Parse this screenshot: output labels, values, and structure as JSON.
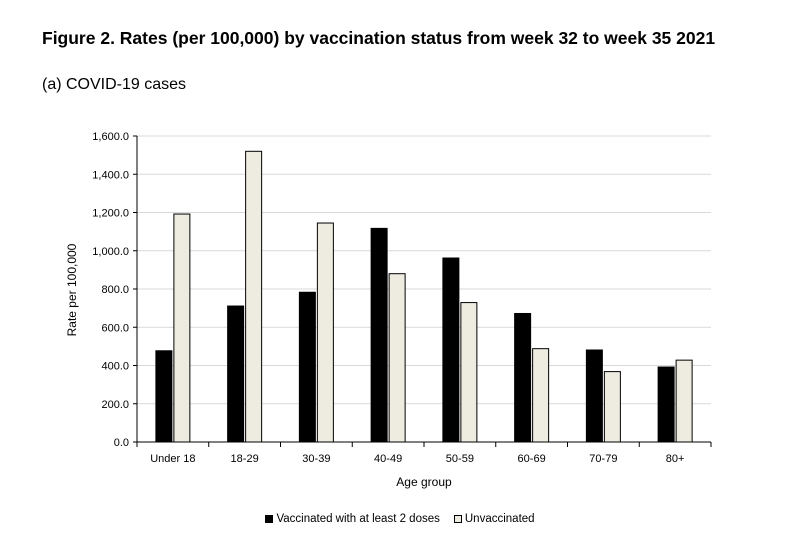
{
  "figure": {
    "title": "Figure 2. Rates (per 100,000) by vaccination status from week 32 to week 35 2021",
    "subtitle": "(a) COVID-19 cases"
  },
  "chart_data": {
    "type": "bar",
    "categories": [
      "Under 18",
      "18-29",
      "30-39",
      "40-49",
      "50-59",
      "60-69",
      "70-79",
      "80+"
    ],
    "series": [
      {
        "name": "Vaccinated with at least 2 doses",
        "color": "#000000",
        "values": [
          477,
          711,
          783,
          1117,
          962,
          672,
          481,
          392
        ]
      },
      {
        "name": "Unvaccinated",
        "color": "#eeece1",
        "values": [
          1192,
          1520,
          1145,
          880,
          729,
          488,
          368,
          428
        ]
      }
    ],
    "xlabel": "Age group",
    "ylabel": "Rate per 100,000",
    "ylim": [
      0,
      1600
    ],
    "yticks": [
      "0.0",
      "200.0",
      "400.0",
      "600.0",
      "800.0",
      "1,000.0",
      "1,200.0",
      "1,400.0",
      "1,600.0"
    ],
    "grid": true,
    "legend_position": "bottom"
  }
}
